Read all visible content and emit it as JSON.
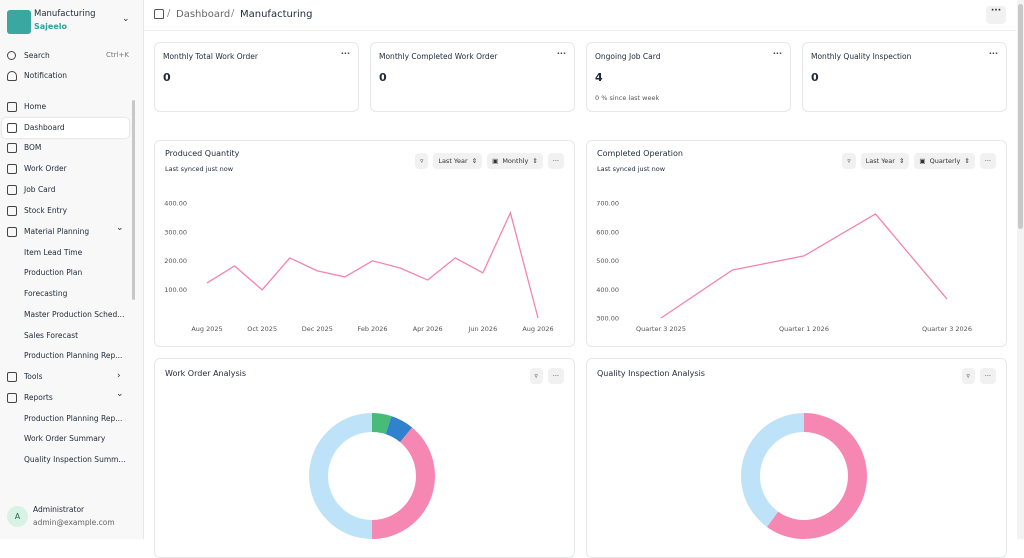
{
  "sidebar": {
    "app": "Manufacturing",
    "org": "Sajeelo",
    "search": "Search",
    "shortcut": "Ctrl+K",
    "notification": "Notification",
    "nav": [
      "Home",
      "Dashboard",
      "BOM",
      "Work Order",
      "Job Card",
      "Stock Entry",
      "Material Planning",
      "Item Lead Time",
      "Production Plan",
      "Forecasting",
      "Master Production Sched...",
      "Sales Forecast",
      "Production Planning Rep...",
      "Tools",
      "Reports",
      "Production Planning Rep...",
      "Work Order Summary",
      "Quality Inspection Summ..."
    ],
    "user": {
      "avatar": "A",
      "name": "Administrator",
      "email": "admin@example.com"
    }
  },
  "breadcrumb": [
    "Dashboard",
    "Manufacturing"
  ],
  "cards": [
    {
      "title": "Monthly Total Work Order",
      "value": 0
    },
    {
      "title": "Monthly Completed Work Order",
      "value": 0
    },
    {
      "title": "Ongoing Job Card",
      "value": 4,
      "note": "0 % since last week"
    },
    {
      "title": "Monthly Quality Inspection",
      "value": 0
    }
  ],
  "chart_data": [
    {
      "type": "line",
      "title": "Produced Quantity",
      "subtitle": "Last synced just now",
      "filters": [
        "Last Year",
        "Monthly"
      ],
      "color": "#f683ae",
      "categories": [
        "Aug 2025",
        null,
        "Oct 2025",
        null,
        "Dec 2025",
        null,
        "Feb 2026",
        null,
        "Apr 2026",
        null,
        "Jun 2026",
        null,
        "Aug 2026"
      ],
      "values": [
        122,
        181,
        98,
        209,
        164,
        143,
        199,
        174,
        132,
        209,
        157,
        366,
        0
      ],
      "ylim": [
        0,
        400
      ],
      "yticks": [
        {
          "value": 100,
          "label": "100.00"
        },
        {
          "value": 200,
          "label": "200.00"
        },
        {
          "value": 300,
          "label": "300.00"
        },
        {
          "value": 400,
          "label": "400.00"
        }
      ]
    },
    {
      "type": "line",
      "title": "Completed Operation",
      "subtitle": "Last synced just now",
      "filters": [
        "Last Year",
        "Quarterly"
      ],
      "color": "#f683ae",
      "categories": [
        "Quarter 3 2025",
        null,
        "Quarter 1 2026",
        null,
        "Quarter 3 2026"
      ],
      "values": [
        300,
        467,
        516,
        662,
        366
      ],
      "ylim": [
        300,
        700
      ],
      "yticks": [
        {
          "value": 300,
          "label": "300.00"
        },
        {
          "value": 400,
          "label": "400.00"
        },
        {
          "value": 500,
          "label": "500.00"
        },
        {
          "value": 600,
          "label": "600.00"
        },
        {
          "value": 700,
          "label": "700.00"
        }
      ]
    },
    {
      "type": "donut",
      "title": "Work Order Analysis",
      "values": [
        5,
        6,
        39,
        50
      ],
      "colors": [
        "#48bb78",
        "#3182ce",
        "#f687b3",
        "#bee3f8"
      ]
    },
    {
      "type": "donut",
      "title": "Quality Inspection Analysis",
      "values": [
        60,
        40
      ],
      "colors": [
        "#f687b3",
        "#bee3f8"
      ]
    }
  ]
}
